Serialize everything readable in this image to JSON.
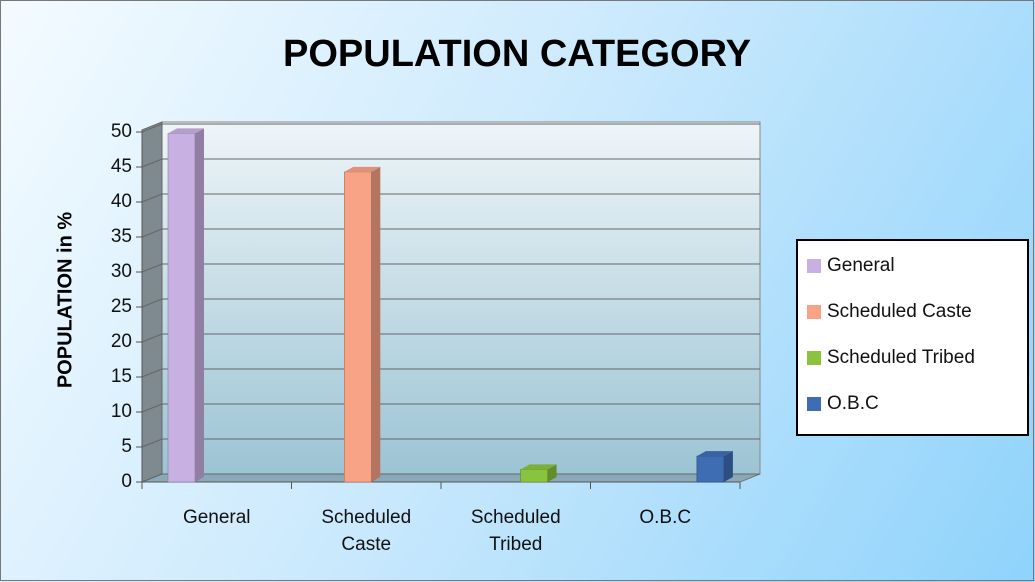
{
  "chart_data": {
    "type": "bar3d",
    "title": "POPULATION CATEGORY",
    "y_label": "POPULATION in %",
    "categories": [
      "General",
      "Scheduled Caste",
      "Scheduled Tribed",
      "O.B.C"
    ],
    "values": [
      49.8,
      44.3,
      1.8,
      3.7
    ],
    "colors": [
      "#c8b0e2",
      "#f8a286",
      "#8ac43f",
      "#3e6db4"
    ],
    "ylim": [
      0,
      50
    ],
    "yticks": [
      0,
      5,
      10,
      15,
      20,
      25,
      30,
      35,
      40,
      45,
      50
    ],
    "grid": true,
    "legend": "right"
  }
}
